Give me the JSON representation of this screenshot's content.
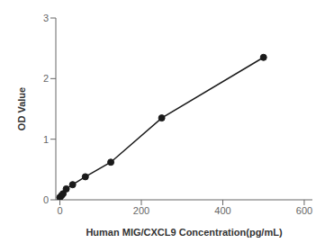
{
  "chart_data": {
    "type": "line",
    "xlabel": "Human MIG/CXCL9 Concentration(pg/mL)",
    "ylabel": "OD Value",
    "x": [
      0,
      3.9,
      7.8,
      15.6,
      31.25,
      62.5,
      125,
      250,
      500
    ],
    "values": [
      0.04,
      0.07,
      0.1,
      0.18,
      0.25,
      0.38,
      0.62,
      1.35,
      2.35
    ],
    "color": "#1a1a1a",
    "marker": "circle",
    "xlim": [
      -10,
      620
    ],
    "ylim": [
      0,
      3.0
    ],
    "xticks": [
      0,
      200,
      400,
      600
    ],
    "yticks": [
      0,
      1,
      2,
      3
    ],
    "grid": false
  }
}
